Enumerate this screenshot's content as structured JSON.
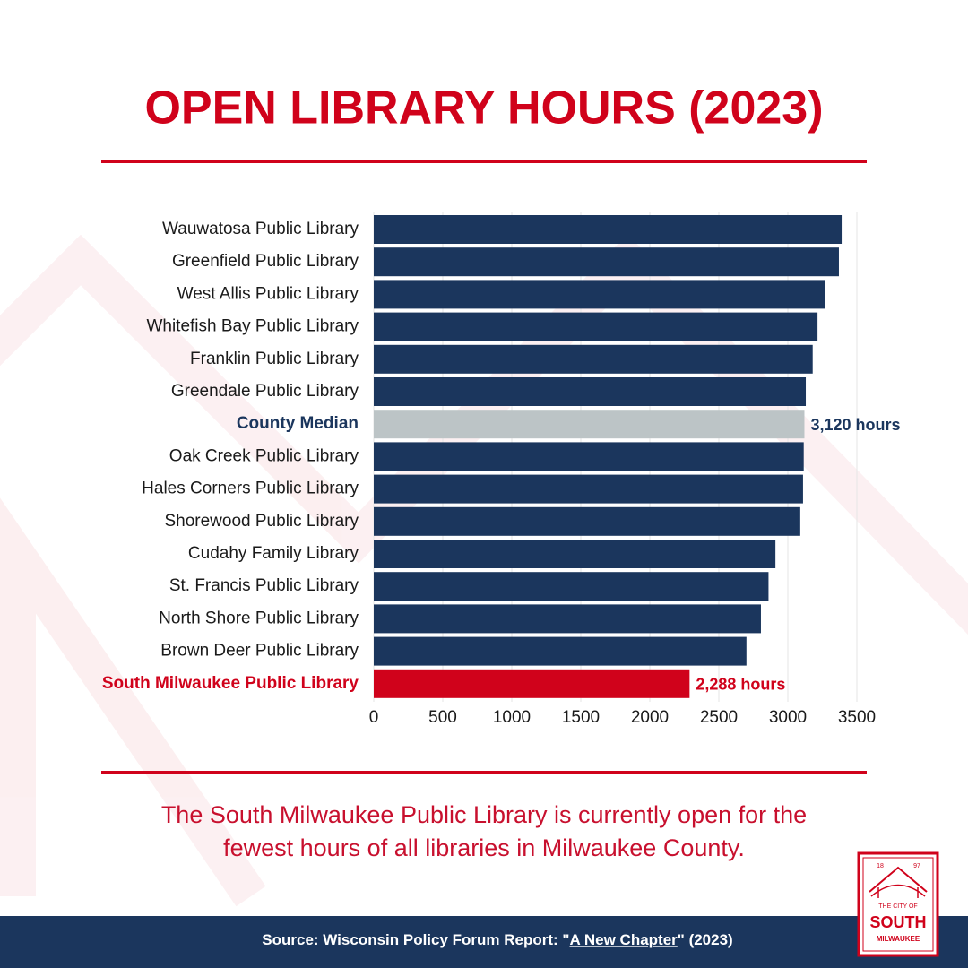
{
  "chart_data": {
    "type": "barh",
    "title": "OPEN LIBRARY HOURS (2023)",
    "categories": [
      "Wauwatosa Public Library",
      "Greenfield Public Library",
      "West Allis Public Library",
      "Whitefish Bay Public Library",
      "Franklin Public Library",
      "Greendale Public Library",
      "County Median",
      "Oak Creek Public Library",
      "Hales Corners Public Library",
      "Shorewood Public Library",
      "Cudahy Family Library",
      "St. Francis Public Library",
      "North Shore Public Library",
      "Brown Deer Public Library",
      "South Milwaukee Public Library"
    ],
    "values": [
      3390,
      3370,
      3270,
      3215,
      3180,
      3130,
      3120,
      3115,
      3110,
      3090,
      2910,
      2860,
      2805,
      2700,
      2288
    ],
    "value_labels": [
      null,
      null,
      null,
      null,
      null,
      null,
      "3,120 hours",
      null,
      null,
      null,
      null,
      null,
      null,
      null,
      "2,288 hours"
    ],
    "colors": [
      "#1b365d",
      "#1b365d",
      "#1b365d",
      "#1b365d",
      "#1b365d",
      "#1b365d",
      "#bcc4c6",
      "#1b365d",
      "#1b365d",
      "#1b365d",
      "#1b365d",
      "#1b365d",
      "#1b365d",
      "#1b365d",
      "#d0021b"
    ],
    "label_colors": [
      "#1a1a1a",
      "#1a1a1a",
      "#1a1a1a",
      "#1a1a1a",
      "#1a1a1a",
      "#1a1a1a",
      "#1b365d",
      "#1a1a1a",
      "#1a1a1a",
      "#1a1a1a",
      "#1a1a1a",
      "#1a1a1a",
      "#1a1a1a",
      "#1a1a1a",
      "#d0021b"
    ],
    "xlim": [
      0,
      3500
    ],
    "xticks": [
      0,
      500,
      1000,
      1500,
      2000,
      2500,
      3000,
      3500
    ],
    "grid": true,
    "caption": [
      "The South Milwaukee Public Library is currently open for the",
      "fewest hours of all libraries in Milwaukee County."
    ],
    "source": [
      "Source: Wisconsin Policy Forum Report: \"",
      "A New Chapter",
      "\" (2023)"
    ]
  },
  "logo": {
    "year_left": "18",
    "year_right": "97",
    "line1": "THE CITY OF",
    "line2": "SOUTH",
    "line3": "MILWAUKEE"
  }
}
